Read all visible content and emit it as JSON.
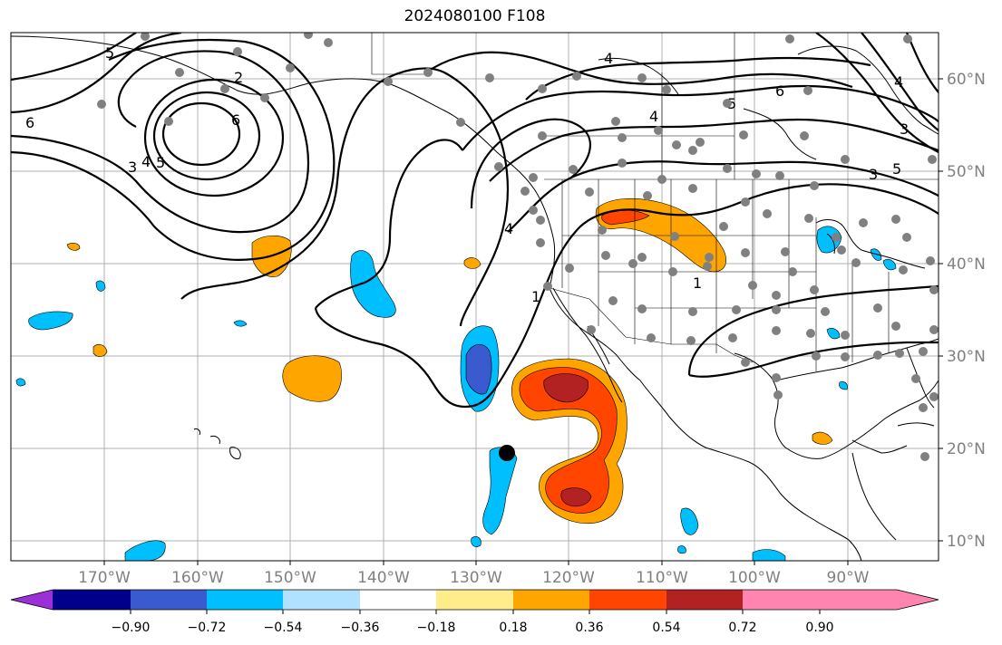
{
  "title": "2024080100 F108",
  "lon_labels": [
    "170°W",
    "160°W",
    "150°W",
    "140°W",
    "130°W",
    "120°W",
    "110°W",
    "100°W",
    "90°W"
  ],
  "lat_labels": [
    "60°N",
    "50°N",
    "40°N",
    "30°N",
    "20°N",
    "10°N"
  ],
  "colorbar": {
    "ticks": [
      "−0.90",
      "−0.72",
      "−0.54",
      "−0.36",
      "−0.18",
      "0.18",
      "0.36",
      "0.54",
      "0.72",
      "0.90"
    ],
    "colors": [
      "#9b30d9",
      "#00008b",
      "#3a5bd0",
      "#00bfff",
      "#b0e2ff",
      "#ffffff",
      "#ffec8b",
      "#ffa500",
      "#ff4500",
      "#b22222",
      "#ff85b0"
    ]
  },
  "contour_labels": [
    "6",
    "5",
    "2",
    "6",
    "4",
    "3",
    "5",
    "1",
    "4",
    "6",
    "4",
    "3",
    "5",
    "3",
    "5",
    "4",
    "4",
    "1"
  ]
}
